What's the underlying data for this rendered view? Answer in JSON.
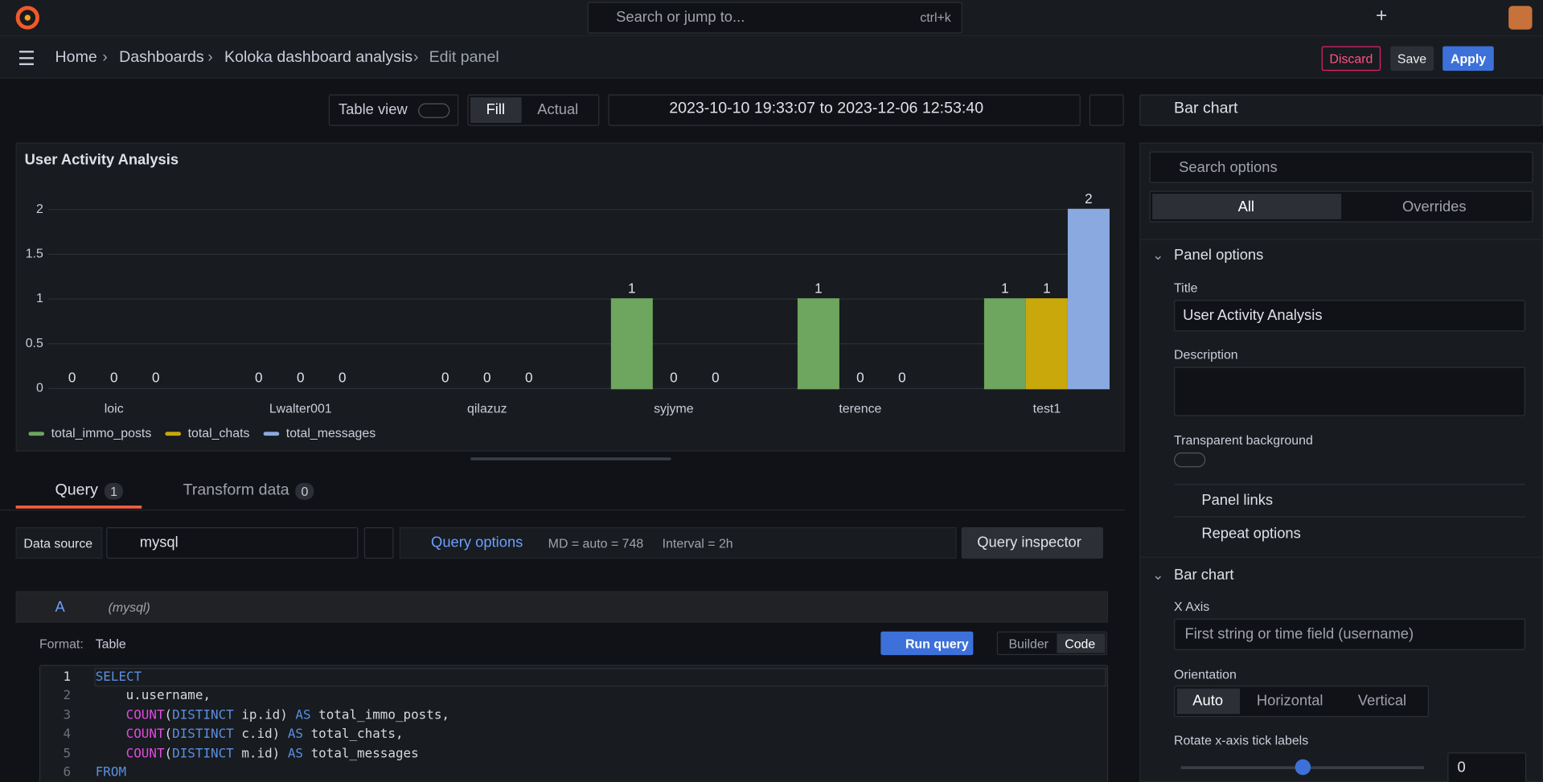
{
  "topbar": {
    "search": "Search or jump to...",
    "shortcut": "ctrl+k"
  },
  "breadcrumb": [
    "Home",
    "Dashboards",
    "Koloka dashboard analysis",
    "Edit panel"
  ],
  "actions": {
    "discard": "Discard",
    "save": "Save",
    "apply": "Apply"
  },
  "toolbar": {
    "table_view": "Table view",
    "fill": "Fill",
    "actual": "Actual",
    "time_range": "2023-10-10 19:33:07 to 2023-12-06 12:53:40"
  },
  "visualization": "Bar chart",
  "chart_data": {
    "type": "bar",
    "title": "User Activity Analysis",
    "categories": [
      "loic",
      "Lwalter001",
      "qilazuz",
      "syjyme",
      "terence",
      "test1"
    ],
    "series": [
      {
        "name": "total_immo_posts",
        "color": "#6ea55f",
        "values": [
          0,
          0,
          0,
          1,
          1,
          1
        ]
      },
      {
        "name": "total_chats",
        "color": "#c9a80c",
        "values": [
          0,
          0,
          0,
          0,
          0,
          1
        ]
      },
      {
        "name": "total_messages",
        "color": "#8aa9e0",
        "values": [
          0,
          0,
          0,
          0,
          0,
          2
        ]
      }
    ],
    "ylim": [
      0,
      2
    ],
    "yticks": [
      0,
      0.5,
      1,
      1.5,
      2
    ],
    "grid": true,
    "legend": "bottom"
  },
  "query_tabs": [
    {
      "label": "Query",
      "count": 1
    },
    {
      "label": "Transform data",
      "count": 0
    }
  ],
  "query_row": {
    "data_source_label": "Data source",
    "data_source": "mysql",
    "query_options": "Query options",
    "md": "MD = auto = 748",
    "interval": "Interval = 2h",
    "inspector": "Query inspector"
  },
  "query": {
    "ref": "A",
    "source": "(mysql)",
    "format_label": "Format:",
    "format": "Table",
    "run": "Run query",
    "builder": "Builder",
    "code": "Code"
  },
  "editor": {
    "line_numbers": [
      1,
      2,
      3,
      4,
      5,
      6
    ],
    "lines": [
      [
        "SELECT"
      ],
      [
        "u.username,"
      ],
      [
        "COUNT",
        "(",
        "DISTINCT",
        " ip.id) ",
        "AS",
        " total_immo_posts,"
      ],
      [
        "COUNT",
        "(",
        "DISTINCT",
        " c.id) ",
        "AS",
        " total_chats,"
      ],
      [
        "COUNT",
        "(",
        "DISTINCT",
        " m.id) ",
        "AS",
        " total_messages"
      ],
      [
        "FROM"
      ]
    ]
  },
  "options": {
    "search": "Search options",
    "tabs": [
      "All",
      "Overrides"
    ],
    "panel_options": "Panel options",
    "title_label": "Title",
    "title_value": "User Activity Analysis",
    "description_label": "Description",
    "transparent_label": "Transparent background",
    "panel_links": "Panel links",
    "repeat_options": "Repeat options",
    "bar_chart": "Bar chart",
    "x_axis_label": "X Axis",
    "x_axis_value": "First string or time field (username)",
    "orientation_label": "Orientation",
    "orientation": [
      "Auto",
      "Horizontal",
      "Vertical"
    ],
    "rotate_label": "Rotate x-axis tick labels",
    "rotate_value": 0
  }
}
